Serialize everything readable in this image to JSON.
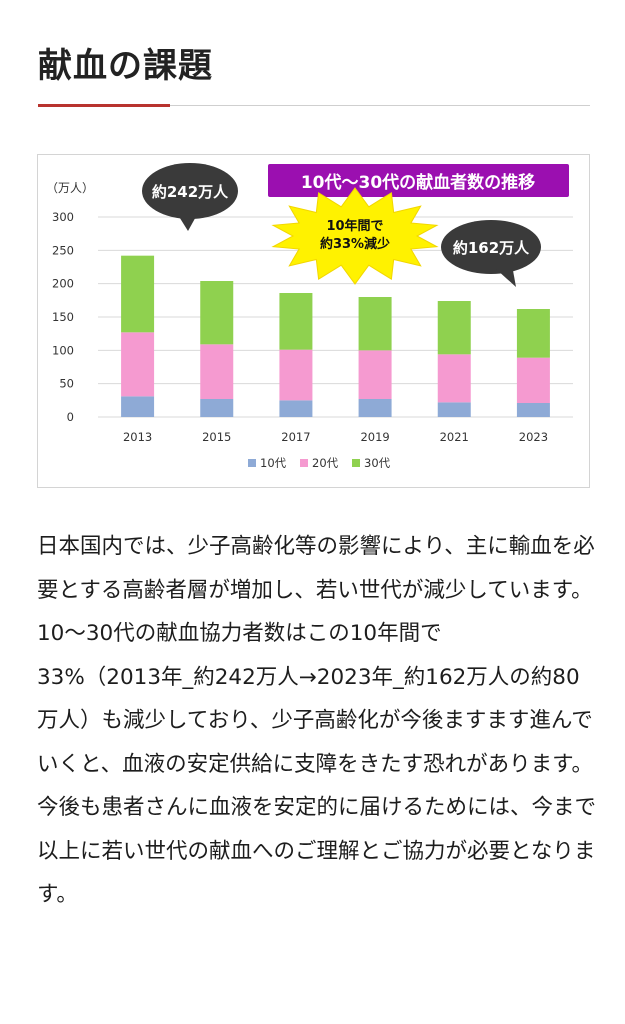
{
  "heading": "献血の課題",
  "chart_data": {
    "type": "bar",
    "stacked": true,
    "title": "10代～30代の献血者数の推移",
    "ylabel": "（万人）",
    "xlabel": "",
    "ylim": [
      0,
      300
    ],
    "yticks": [
      "0",
      "50",
      "100",
      "150",
      "200",
      "250",
      "300"
    ],
    "categories": [
      "2013",
      "2015",
      "2017",
      "2019",
      "2021",
      "2023"
    ],
    "series": [
      {
        "name": "10代",
        "color": "#8eaad6",
        "values": [
          31,
          27,
          25,
          27,
          22,
          21
        ]
      },
      {
        "name": "20代",
        "color": "#f59ad0",
        "values": [
          96,
          82,
          76,
          73,
          72,
          68
        ]
      },
      {
        "name": "30代",
        "color": "#8fd14f",
        "values": [
          115,
          95,
          85,
          80,
          80,
          73
        ]
      }
    ],
    "grid": true,
    "legend_position": "bottom",
    "annotations": {
      "left_bubble": "約242万人",
      "right_bubble": "約162万人",
      "burst_line1": "10年間で",
      "burst_line2": "約33%減少"
    },
    "colors": {
      "title_bg": "#9b0fb0",
      "title_text": "#ffffff",
      "burst_fill": "#fff200",
      "bubble_fill": "#3a3a3a"
    }
  },
  "paragraphs": {
    "p1": "日本国内では、少子高齢化等の影響により、主に輸血を必要とする高齢者層が増加し、若い世代が減少しています。",
    "p2": "10～30代の献血協力者数はこの10年間で",
    "p3": "33%（2013年_約242万人→2023年_約162万人の約80万人）も減少しており、少子高齢化が今後ますます進んでいくと、血液の安定供給に支障をきたす恐れがあります。今後も患者さんに血液を安定的に届けるためには、今まで以上に若い世代の献血へのご理解とご協力が必要となります。"
  }
}
